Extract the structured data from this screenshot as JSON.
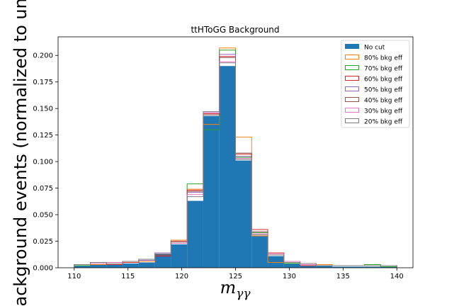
{
  "chart_data": {
    "type": "histogram",
    "title": "ttHToGG Background",
    "xlabel_main": "m",
    "xlabel_sub": "γγ",
    "ylabel": "Background events (normalized to unit",
    "xlim": [
      108.5,
      141.5
    ],
    "ylim": [
      0,
      0.2175
    ],
    "xticks": [
      110,
      115,
      120,
      125,
      130,
      135,
      140
    ],
    "yticks": [
      0.0,
      0.025,
      0.05,
      0.075,
      0.1,
      0.125,
      0.15,
      0.175,
      0.2
    ],
    "ytick_labels": [
      "0.000",
      "0.025",
      "0.050",
      "0.075",
      "0.100",
      "0.125",
      "0.150",
      "0.175",
      "0.200"
    ],
    "bin_edges": [
      110,
      111.5,
      113,
      114.5,
      116,
      117.5,
      119,
      120.5,
      122,
      123.5,
      125,
      126.5,
      128,
      129.5,
      131,
      132.5,
      134,
      135.5,
      137,
      138.5,
      140
    ],
    "legend_position": "upper-right",
    "filled_series": {
      "name": "No cut",
      "color": "#1f77b4",
      "values": [
        0.002,
        0.003,
        0.003,
        0.004,
        0.005,
        0.013,
        0.022,
        0.063,
        0.143,
        0.19,
        0.101,
        0.03,
        0.011,
        0.004,
        0.002,
        0.002,
        0.001,
        0.001,
        0.001,
        0.001
      ]
    },
    "step_series": [
      {
        "name": "80% bkg eff",
        "color": "#ff7f0e",
        "values": [
          0.002,
          0.003,
          0.003,
          0.005,
          0.006,
          0.011,
          0.026,
          0.074,
          0.135,
          0.207,
          0.123,
          0.03,
          0.005,
          0.004,
          0.003,
          0.003,
          0.002,
          0.002,
          0.002,
          0.001
        ]
      },
      {
        "name": "70% bkg eff",
        "color": "#2ca02c",
        "values": [
          0.002,
          0.004,
          0.004,
          0.005,
          0.007,
          0.012,
          0.025,
          0.079,
          0.13,
          0.205,
          0.104,
          0.033,
          0.013,
          0.004,
          0.003,
          0.002,
          0.002,
          0.002,
          0.003,
          0.001
        ]
      },
      {
        "name": "60% bkg eff",
        "color": "#d62728",
        "values": [
          0.003,
          0.005,
          0.003,
          0.005,
          0.007,
          0.011,
          0.025,
          0.073,
          0.145,
          0.199,
          0.107,
          0.036,
          0.014,
          0.006,
          0.002,
          0.002,
          0.002,
          0.002,
          0.002,
          0.002
        ]
      },
      {
        "name": "50% bkg eff",
        "color": "#9467bd",
        "values": [
          0.003,
          0.004,
          0.004,
          0.006,
          0.007,
          0.014,
          0.023,
          0.071,
          0.146,
          0.201,
          0.105,
          0.032,
          0.013,
          0.006,
          0.003,
          0.002,
          0.002,
          0.002,
          0.002,
          0.002
        ]
      },
      {
        "name": "40% bkg eff",
        "color": "#8c564b",
        "values": [
          0.003,
          0.005,
          0.004,
          0.006,
          0.008,
          0.012,
          0.024,
          0.072,
          0.144,
          0.198,
          0.108,
          0.034,
          0.012,
          0.005,
          0.003,
          0.002,
          0.002,
          0.002,
          0.002,
          0.002
        ]
      },
      {
        "name": "30% bkg eff",
        "color": "#e377c2",
        "values": [
          0.003,
          0.004,
          0.005,
          0.006,
          0.008,
          0.013,
          0.023,
          0.069,
          0.146,
          0.194,
          0.103,
          0.032,
          0.013,
          0.006,
          0.003,
          0.002,
          0.002,
          0.002,
          0.002,
          0.002
        ]
      },
      {
        "name": "20% bkg eff",
        "color": "#7f7f7f",
        "values": [
          0.003,
          0.005,
          0.004,
          0.006,
          0.008,
          0.013,
          0.024,
          0.067,
          0.147,
          0.193,
          0.102,
          0.031,
          0.012,
          0.005,
          0.004,
          0.002,
          0.002,
          0.002,
          0.002,
          0.002
        ]
      }
    ]
  }
}
